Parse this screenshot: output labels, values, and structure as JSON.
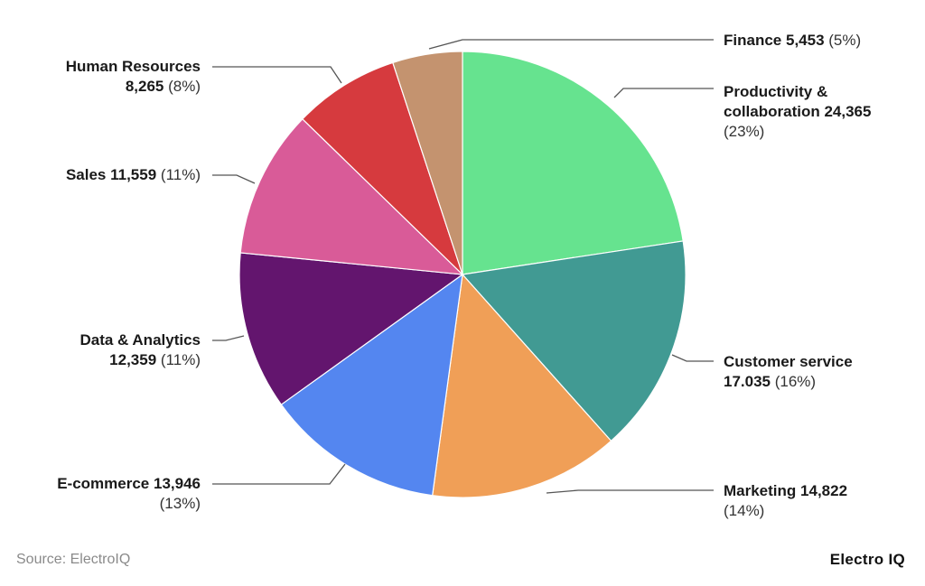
{
  "chart_data": {
    "type": "pie",
    "slices": [
      {
        "name": "Productivity & collaboration",
        "value": "24,365",
        "numeric": 24365,
        "pct": "(23%)",
        "color": "#66e38f"
      },
      {
        "name": "Customer service",
        "value": "17.035",
        "numeric": 17035,
        "pct": "(16%)",
        "color": "#419a93"
      },
      {
        "name": "Marketing",
        "value": "14,822",
        "numeric": 14822,
        "pct": "(14%)",
        "color": "#f09f57"
      },
      {
        "name": "E-commerce",
        "value": "13,946",
        "numeric": 13946,
        "pct": "(13%)",
        "color": "#5486f0"
      },
      {
        "name": "Data & Analytics",
        "value": "12,359",
        "numeric": 12359,
        "pct": "(11%)",
        "color": "#63156e"
      },
      {
        "name": "Sales",
        "value": "11,559",
        "numeric": 11559,
        "pct": "(11%)",
        "color": "#d95b98"
      },
      {
        "name": "Human Resources",
        "value": "8,265",
        "numeric": 8265,
        "pct": "(8%)",
        "color": "#d63a3e"
      },
      {
        "name": "Finance",
        "value": "5,453",
        "numeric": 5453,
        "pct": "(5%)",
        "color": "#c4936f"
      }
    ]
  },
  "footer": {
    "source": "Source: ElectroIQ",
    "brand": "Electro IQ"
  }
}
